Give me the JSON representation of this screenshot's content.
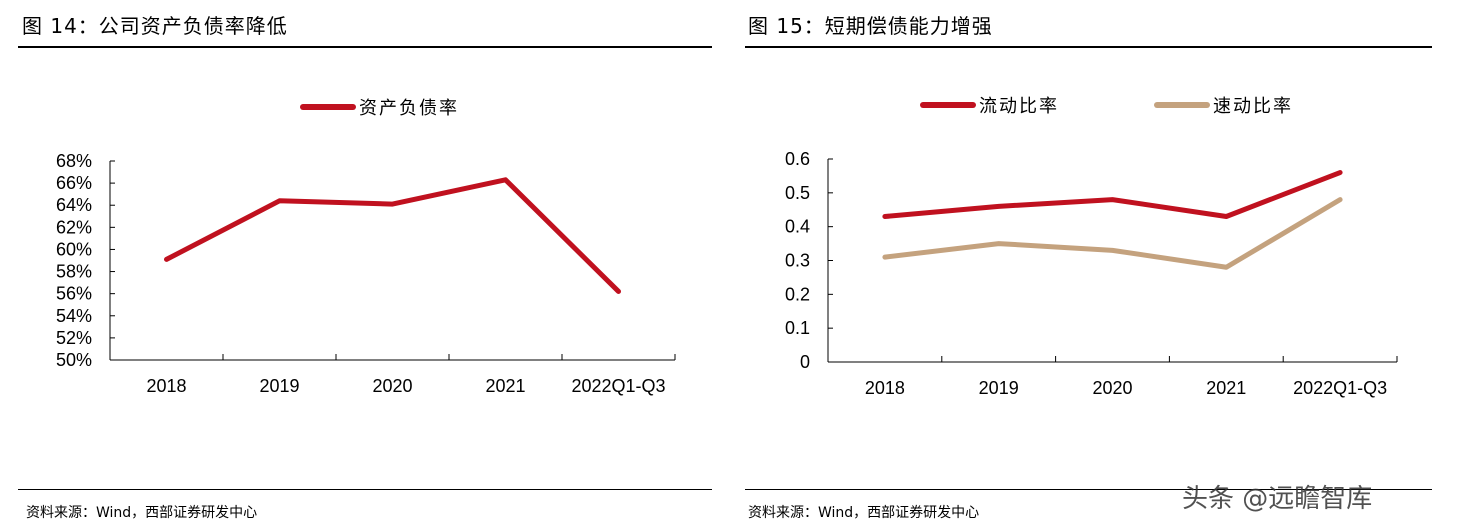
{
  "left": {
    "title": "图 14：公司资产负债率降低",
    "source": "资料来源：Wind，西部证券研发中心"
  },
  "right": {
    "title": "图 15：短期偿债能力增强",
    "source": "资料来源：Wind，西部证券研发中心"
  },
  "watermark": "头条 @远瞻智库",
  "chart_data": [
    {
      "type": "line",
      "categories": [
        "2018",
        "2019",
        "2020",
        "2021",
        "2022Q1-Q3"
      ],
      "ylim": [
        50,
        68
      ],
      "yticks": [
        "50%",
        "52%",
        "54%",
        "56%",
        "58%",
        "60%",
        "62%",
        "64%",
        "66%",
        "68%"
      ],
      "grid": false,
      "legend_position": "top",
      "series": [
        {
          "name": "资产负债率",
          "color": "#c0111f",
          "values": [
            59.1,
            64.4,
            64.1,
            66.3,
            56.2
          ]
        }
      ]
    },
    {
      "type": "line",
      "categories": [
        "2018",
        "2019",
        "2020",
        "2021",
        "2022Q1-Q3"
      ],
      "ylim": [
        0,
        0.6
      ],
      "yticks": [
        "0",
        "0.1",
        "0.2",
        "0.3",
        "0.4",
        "0.5",
        "0.6"
      ],
      "grid": false,
      "legend_position": "top",
      "series": [
        {
          "name": "流动比率",
          "color": "#c0111f",
          "values": [
            0.43,
            0.46,
            0.48,
            0.43,
            0.56
          ]
        },
        {
          "name": "速动比率",
          "color": "#c4a27e",
          "values": [
            0.31,
            0.35,
            0.33,
            0.28,
            0.48
          ]
        }
      ]
    }
  ]
}
